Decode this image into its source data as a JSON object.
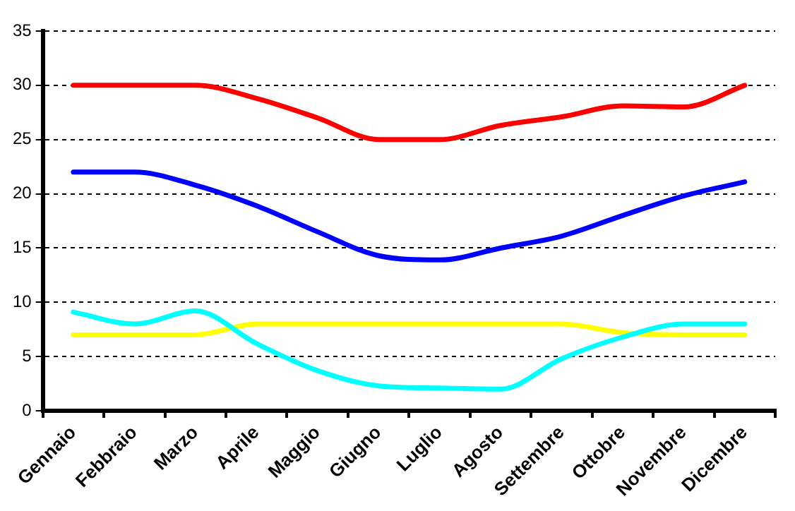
{
  "chart_data": {
    "type": "line",
    "categories": [
      "Gennaio",
      "Febbraio",
      "Marzo",
      "Aprile",
      "Maggio",
      "Giugno",
      "Luglio",
      "Agosto",
      "Settembre",
      "Ottobre",
      "Novembre",
      "Dicembre"
    ],
    "series": [
      {
        "color": "#ff0000",
        "values": [
          30,
          30,
          30,
          28.8,
          27,
          25,
          25,
          26.3,
          27.1,
          28.1,
          28,
          30
        ]
      },
      {
        "color": "#0000ff",
        "values": [
          22,
          22,
          20.8,
          18.9,
          16.5,
          14.3,
          13.9,
          15,
          16.1,
          18,
          19.8,
          21.1
        ]
      },
      {
        "color": "#00ffff",
        "values": [
          9.1,
          8,
          9.2,
          6.2,
          3.7,
          2.3,
          2.1,
          2,
          4.8,
          6.8,
          8,
          8
        ]
      },
      {
        "color": "#ffff00",
        "values": [
          7,
          7,
          7,
          8,
          8,
          8,
          8,
          8,
          8,
          7.2,
          7,
          7
        ]
      }
    ],
    "ylim": [
      0,
      35
    ],
    "yticks": [
      0,
      5,
      10,
      15,
      20,
      25,
      30,
      35
    ],
    "grid": "y",
    "marker": "none",
    "line_style": "solid"
  }
}
